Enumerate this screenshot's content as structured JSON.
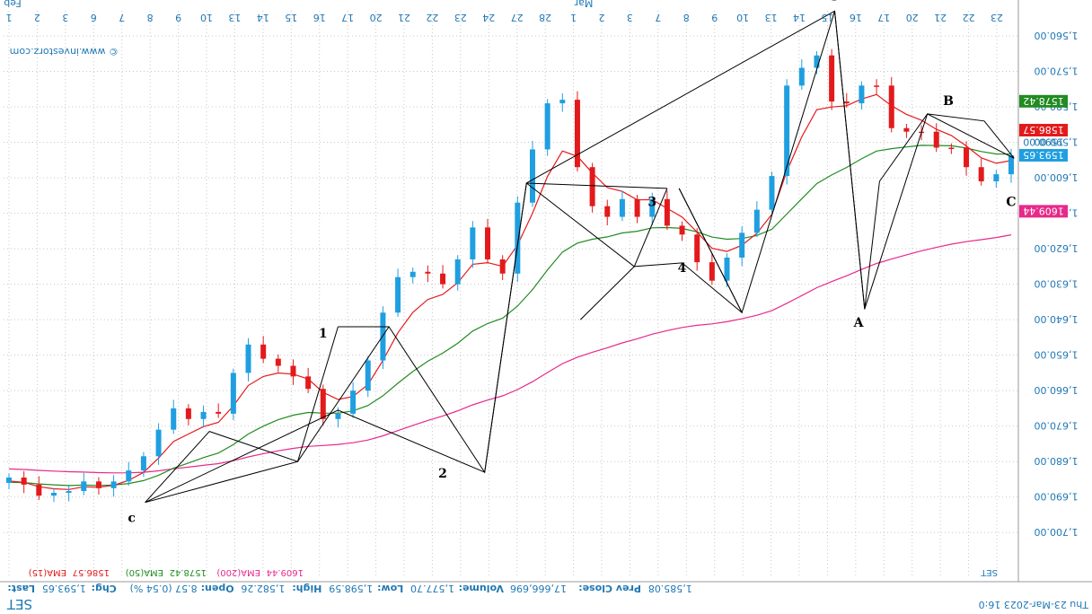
{
  "chart_data": {
    "type": "candlestick",
    "symbol": "SET",
    "watermark": "© www.investorz.com",
    "date_info": "Thu 23-Mar-2023 16:0",
    "month_labels": [
      "Feb",
      "Mar"
    ],
    "x_ticks": [
      "1",
      "2",
      "3",
      "6",
      "7",
      "8",
      "9",
      "10",
      "13",
      "14",
      "15",
      "16",
      "17",
      "20",
      "21",
      "22",
      "23",
      "24",
      "27",
      "28",
      "1",
      "2",
      "3",
      "7",
      "8",
      "9",
      "10",
      "13",
      "14",
      "15",
      "16",
      "17",
      "20",
      "21",
      "22",
      "23"
    ],
    "y_axis": {
      "min": 1560,
      "max": 1705,
      "ticks": [
        "1,560.00",
        "1,570.00",
        "1,580.00",
        "1,590.00",
        "1,600.00",
        "1,610.00",
        "1,620.00",
        "1,630.00",
        "1,640.00",
        "1,650.00",
        "1,660.00",
        "1,670.00",
        "1,680.00",
        "1,690.00",
        "1,700.00"
      ],
      "direction": "inverted"
    },
    "close_series": [
      1684.5,
      1686.5,
      1689.6,
      1688.8,
      1688.3,
      1685.6,
      1687.5,
      1685.6,
      1682.5,
      1678.5,
      1671.0,
      1665.0,
      1668.0,
      1666.0,
      1666.5,
      1655.0,
      1647.0,
      1651.0,
      1653.0,
      1656.0,
      1659.5,
      1668.0,
      1666.5,
      1660.0,
      1651.5,
      1638.0,
      1628.0,
      1626.5,
      1627.0,
      1630.0,
      1623.0,
      1614.0,
      1623.0,
      1627.0,
      1607.0,
      1592.0,
      1579.0,
      1578.0,
      1597.0,
      1608.0,
      1611.0,
      1606.0,
      1611.0,
      1606.0,
      1613.5,
      1616.0,
      1623.8,
      1629.0,
      1622.5,
      1615.5,
      1609.0,
      1599.5,
      1574.0,
      1569.0,
      1565.5,
      1578.5,
      1579.0,
      1574.0,
      1574.0,
      1586.0,
      1587.0,
      1587.0,
      1591.5,
      1591.5,
      1597.0,
      1601.0,
      1599.0,
      1593.65
    ],
    "overlays": [
      {
        "name": "EMA(15)",
        "value": "1586.57",
        "color": "#e31a1c"
      },
      {
        "name": "EMA(50)",
        "value": "1578.42",
        "color": "#228b22"
      },
      {
        "name": "EMA(200)",
        "value": "1609.44",
        "color": "#e7298a"
      }
    ],
    "last_tag": {
      "value": "1593.65",
      "color": "#1f9fe0"
    },
    "hidden_tag": "1590.00",
    "wave_labels": [
      "c",
      "1",
      "2",
      "3",
      "4",
      "5",
      "A",
      "B",
      "C"
    ],
    "info_bar": {
      "last": "1,593.65",
      "chg": "8.57 (0.54 %)",
      "open": "1,582.26",
      "high": "1,598.59",
      "low": "1,577.70",
      "volume": "17,666,696",
      "prev_close": "1,585.08"
    },
    "info_labels": {
      "last": "Last:",
      "chg": "Chg:",
      "open": "Open:",
      "high": "High:",
      "low": "Low:",
      "volume": "Volume:",
      "prev_close": "Prev Close:"
    },
    "legend_symbol": "SET"
  },
  "colors": {
    "up": "#1f9fe0",
    "down": "#e31a1c",
    "grid": "#c8c8c8",
    "axis_text": "#1f78b4",
    "wave_line": "#000000"
  }
}
